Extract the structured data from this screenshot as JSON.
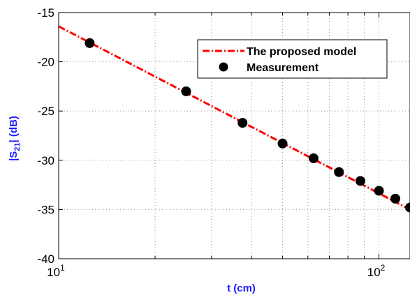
{
  "chart_data": {
    "type": "line",
    "xscale": "log",
    "xlim": [
      10,
      125
    ],
    "ylim": [
      -40,
      -15
    ],
    "grid": true,
    "xlabel": "t (cm)",
    "ylabel": "|S21| (dB)",
    "ylabel_parts": {
      "main": "|S",
      "sub": "21",
      "rest": "| (dB)"
    },
    "yticks": [
      {
        "value": -15,
        "label": "-15"
      },
      {
        "value": -20,
        "label": "-20"
      },
      {
        "value": -25,
        "label": "-25"
      },
      {
        "value": -30,
        "label": "-30"
      },
      {
        "value": -35,
        "label": "-35"
      },
      {
        "value": -40,
        "label": "-40"
      }
    ],
    "xticks": [
      {
        "value": 10,
        "base": "10",
        "exp": "1"
      },
      {
        "value": 100,
        "base": "10",
        "exp": "2"
      }
    ],
    "legend_position": "top-right",
    "series": [
      {
        "name": "The proposed model",
        "style": "dash-dot",
        "color": "#ff0000",
        "x": [
          10,
          125
        ],
        "y": [
          -16.4,
          -35.0
        ]
      },
      {
        "name": "Measurement",
        "style": "markers",
        "color": "#000000",
        "x": [
          12.5,
          25,
          37.5,
          50,
          62.5,
          75,
          87.5,
          100,
          112.5,
          125
        ],
        "y": [
          -18.1,
          -23.0,
          -26.2,
          -28.3,
          -29.8,
          -31.2,
          -32.1,
          -33.1,
          -33.9,
          -34.8
        ]
      }
    ]
  }
}
